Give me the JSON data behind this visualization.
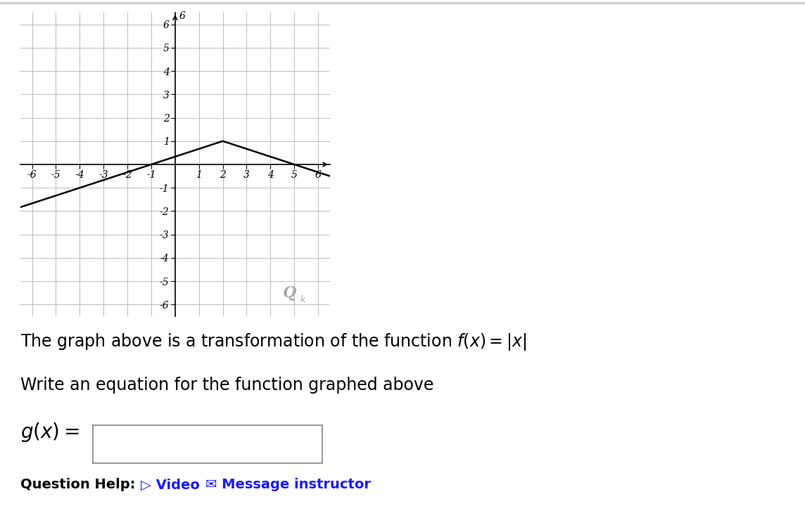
{
  "xlim": [
    -6.5,
    6.5
  ],
  "ylim": [
    -6.5,
    6.5
  ],
  "xticks": [
    -6,
    -5,
    -4,
    -3,
    -2,
    -1,
    1,
    2,
    3,
    4,
    5,
    6
  ],
  "yticks": [
    -6,
    -5,
    -4,
    -3,
    -2,
    -1,
    1,
    2,
    3,
    4,
    5,
    6
  ],
  "xtick_labels": [
    "-6",
    "-5",
    "-4",
    "-3",
    "-2",
    "-1",
    "1",
    "2",
    "3",
    "4",
    "5",
    "6"
  ],
  "ytick_labels": [
    "-6",
    "-5",
    "-4",
    "-3",
    "-2",
    "-1",
    "1",
    "2",
    "3",
    "4",
    "5",
    "6"
  ],
  "graph_color": "#000000",
  "grid_color": "#bbbbbb",
  "axis_color": "#000000",
  "background_color": "#ffffff",
  "vertex_x": 2,
  "vertex_y": 1,
  "slope": 0.3333333333333333,
  "x_start": -6.5,
  "x_end": 6.5,
  "line_width": 1.8,
  "font_size_axis": 10,
  "font_size_text": 17
}
